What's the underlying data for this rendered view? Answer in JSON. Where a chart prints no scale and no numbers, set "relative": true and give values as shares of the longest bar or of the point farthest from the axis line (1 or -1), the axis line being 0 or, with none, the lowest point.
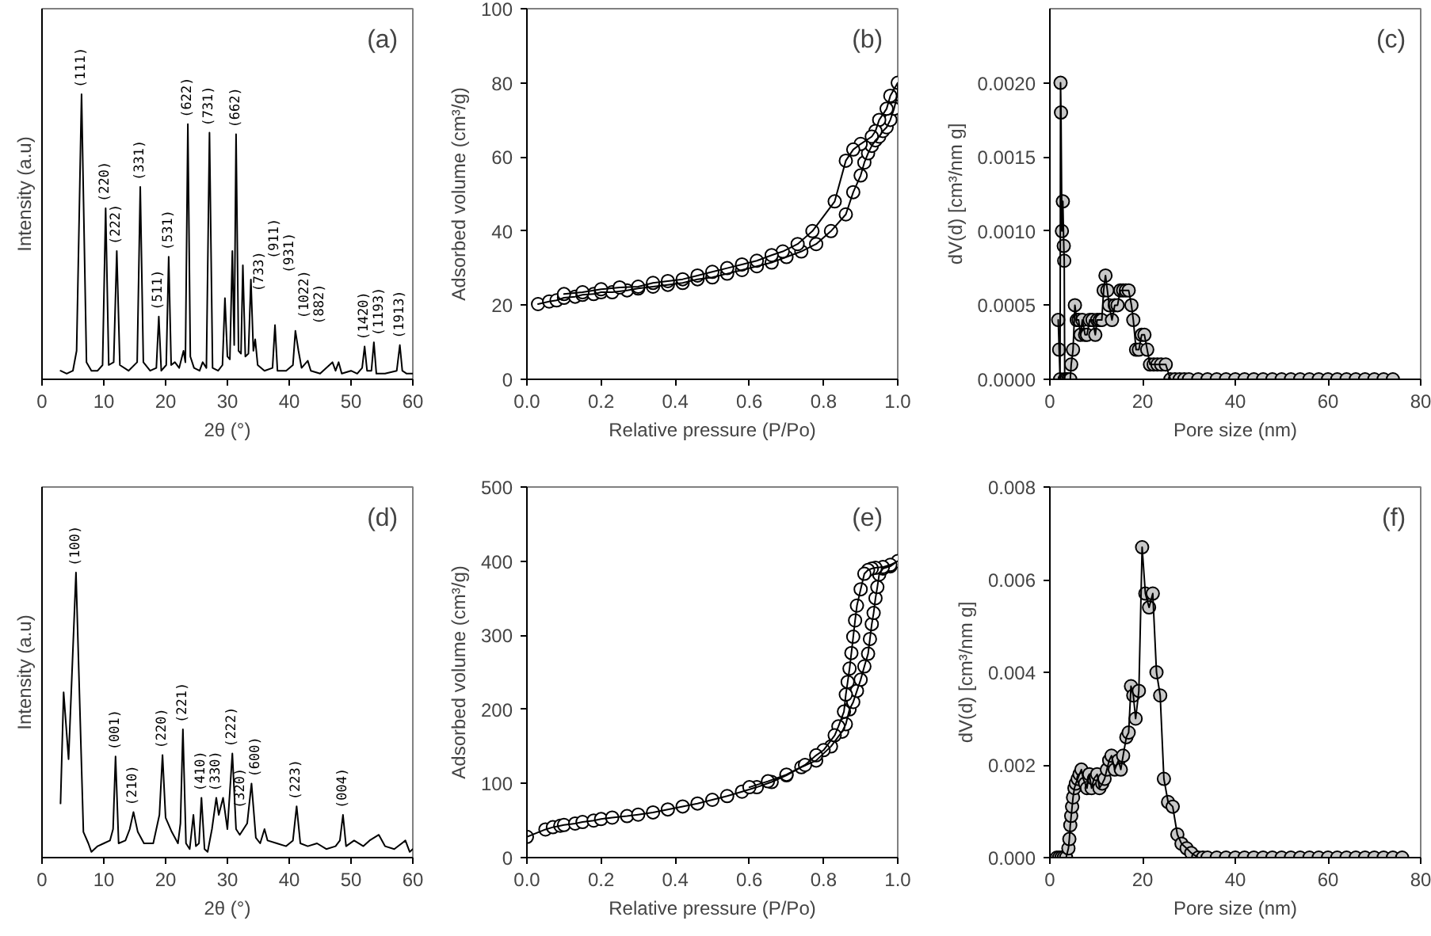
{
  "chart_data": [
    {
      "type": "line",
      "xlabel": "2θ (°)",
      "ylabel": "Intensity (a.u)",
      "relative": true,
      "tick_labels": "x",
      "xlim": [
        0,
        60
      ],
      "xticks": [
        0,
        10,
        20,
        30,
        40,
        50,
        60
      ],
      "x": [
        3,
        4,
        5,
        5.6,
        6.4,
        7.2,
        8,
        9,
        9.8,
        10.3,
        10.8,
        11.6,
        12.1,
        12.6,
        14,
        15.4,
        15.9,
        16.4,
        17.5,
        18.5,
        18.9,
        19.3,
        20.1,
        20.5,
        20.9,
        21.5,
        22.2,
        22.9,
        23.2,
        23.6,
        24.0,
        24.6,
        25.5,
        26,
        26.6,
        27.1,
        27.6,
        28.5,
        29.2,
        29.6,
        30.0,
        30.4,
        30.8,
        31.1,
        31.4,
        31.8,
        32.2,
        32.5,
        32.9,
        33.4,
        33.8,
        34.2,
        34.5,
        34.9,
        36,
        37.3,
        37.7,
        38.1,
        39.5,
        40.6,
        41.0,
        41.5,
        42,
        43,
        43.5,
        45,
        47,
        47.5,
        48,
        48.5,
        50,
        51,
        51.8,
        52.2,
        52.6,
        53.3,
        53.7,
        54.1,
        55.5,
        57.4,
        57.9,
        58.3,
        59,
        60
      ],
      "series": [
        {
          "color": "#000000",
          "values": [
            0.03,
            0.02,
            0.03,
            0.1,
            1.0,
            0.06,
            0.03,
            0.03,
            0.05,
            0.6,
            0.05,
            0.06,
            0.45,
            0.05,
            0.03,
            0.06,
            0.675,
            0.06,
            0.03,
            0.04,
            0.22,
            0.03,
            0.05,
            0.43,
            0.05,
            0.06,
            0.04,
            0.1,
            0.06,
            0.895,
            0.08,
            0.04,
            0.03,
            0.06,
            0.04,
            0.865,
            0.04,
            0.03,
            0.05,
            0.285,
            0.08,
            0.07,
            0.45,
            0.12,
            0.86,
            0.1,
            0.09,
            0.4,
            0.08,
            0.09,
            0.35,
            0.1,
            0.14,
            0.05,
            0.03,
            0.04,
            0.19,
            0.03,
            0.03,
            0.05,
            0.17,
            0.1,
            0.04,
            0.065,
            0.03,
            0.02,
            0.06,
            0.03,
            0.06,
            0.02,
            0.03,
            0.02,
            0.04,
            0.115,
            0.03,
            0.03,
            0.13,
            0.02,
            0.02,
            0.03,
            0.12,
            0.03,
            0.02,
            0.02
          ]
        }
      ],
      "annotations": [
        "(a)",
        {
          "text": "(111)",
          "x": 6.4,
          "y": 1.0
        },
        {
          "text": "(220)",
          "x": 10.3,
          "y": 0.6
        },
        {
          "text": "(222)",
          "x": 12.1,
          "y": 0.45
        },
        {
          "text": "(331)",
          "x": 15.9,
          "y": 0.675
        },
        {
          "text": "(511)",
          "x": 18.9,
          "y": 0.22
        },
        {
          "text": "(531)",
          "x": 20.5,
          "y": 0.43
        },
        {
          "text": "(622)",
          "x": 23.6,
          "y": 0.895
        },
        {
          "text": "(731)",
          "x": 27.1,
          "y": 0.865
        },
        {
          "text": "(733)",
          "x": 29.6,
          "y": 0.285
        },
        {
          "text": "(662)",
          "x": 31.4,
          "y": 0.86
        },
        {
          "text": "(911)",
          "x": 32.5,
          "y": 0.4
        },
        {
          "text": "(931)",
          "x": 33.8,
          "y": 0.35
        },
        {
          "text": "(1022)",
          "x": 37.7,
          "y": 0.19
        },
        {
          "text": "(882)",
          "x": 41.0,
          "y": 0.17
        },
        {
          "text": "(1420)",
          "x": 52.2,
          "y": 0.115
        },
        {
          "text": "(1193)",
          "x": 53.7,
          "y": 0.13
        },
        {
          "text": "(1913)",
          "x": 57.9,
          "y": 0.12
        }
      ]
    },
    {
      "type": "line",
      "xlabel": "Relative pressure (P/Po)",
      "ylabel": "Adsorbed volume (cm³/g)",
      "marker": "circle",
      "xlim": [
        0,
        1
      ],
      "xticks": [
        {
          "value": 0,
          "label": "0.0"
        },
        {
          "value": 0.2,
          "label": "0.2"
        },
        {
          "value": 0.4,
          "label": "0.4"
        },
        {
          "value": 0.6,
          "label": "0.6"
        },
        {
          "value": 0.8,
          "label": "0.8"
        },
        {
          "value": 1,
          "label": "1.0"
        }
      ],
      "ylim": [
        0,
        100
      ],
      "yticks": [
        0,
        20,
        40,
        60,
        80,
        100
      ],
      "series": [
        {
          "color": "#ffffff",
          "x": [
            0.03,
            0.06,
            0.08,
            0.1,
            0.13,
            0.15,
            0.18,
            0.2,
            0.23,
            0.27,
            0.3,
            0.34,
            0.38,
            0.42,
            0.46,
            0.5,
            0.54,
            0.58,
            0.62,
            0.66,
            0.7,
            0.74,
            0.78,
            0.82,
            0.86,
            0.88,
            0.9,
            0.91,
            0.92,
            0.93,
            0.94,
            0.95,
            0.96,
            0.97,
            0.98,
            0.99,
            1.0,
            1.0,
            0.98,
            0.97,
            0.95,
            0.94,
            0.93,
            0.9,
            0.88,
            0.86,
            0.83,
            0.77,
            0.73,
            0.69,
            0.66,
            0.62,
            0.58,
            0.54,
            0.5,
            0.46,
            0.42,
            0.38,
            0.34,
            0.3,
            0.25,
            0.2,
            0.15,
            0.1
          ],
          "values": [
            20.3,
            21,
            21.3,
            22,
            22.3,
            22.8,
            23,
            23.5,
            23.5,
            24,
            24.5,
            25,
            25.5,
            26,
            27,
            27.5,
            28.5,
            29.5,
            30.5,
            31.5,
            33,
            34.5,
            36.5,
            40,
            44.5,
            50.5,
            55,
            58.5,
            61,
            63,
            64.5,
            65.5,
            67,
            68,
            70,
            73,
            77,
            80,
            76.5,
            73,
            70,
            67,
            65.5,
            63.5,
            62,
            59,
            48,
            40,
            36.5,
            34.5,
            33.5,
            32,
            31,
            30,
            29,
            28,
            27,
            26.5,
            26,
            25,
            24.8,
            24.3,
            23.5,
            23
          ]
        }
      ],
      "annotations": [
        "(b)"
      ]
    },
    {
      "type": "line",
      "xlabel": "Pore size (nm)",
      "ylabel": "dV(d) [cm³/nm g]",
      "marker": "circle",
      "xlim": [
        0,
        80
      ],
      "xticks": [
        0,
        20,
        40,
        60,
        80
      ],
      "ylim": [
        0,
        0.0025
      ],
      "yticks": [
        {
          "value": 0,
          "label": "0.0000"
        },
        {
          "value": 0.0005,
          "label": "0.0005"
        },
        {
          "value": 0.001,
          "label": "0.0010"
        },
        {
          "value": 0.0015,
          "label": "0.0015"
        },
        {
          "value": 0.002,
          "label": "0.0020"
        }
      ],
      "series": [
        {
          "color": "#c8c8c8",
          "x": [
            1.8,
            2.0,
            2.2,
            2.3,
            2.4,
            2.6,
            2.8,
            3.0,
            3.1,
            3.2,
            3.6,
            4.0,
            4.4,
            4.6,
            5.0,
            5.4,
            5.8,
            6.2,
            6.6,
            7.0,
            7.6,
            8.0,
            8.6,
            9.2,
            9.8,
            10.2,
            10.8,
            11.2,
            11.6,
            12.0,
            12.4,
            12.8,
            13.4,
            14.0,
            14.6,
            15.2,
            15.8,
            16.4,
            17.0,
            17.6,
            18.0,
            18.6,
            19.2,
            19.8,
            20.4,
            21.0,
            21.6,
            22.4,
            23.2,
            24.0,
            25,
            26,
            27,
            28,
            29,
            30,
            32,
            34,
            36,
            38,
            40,
            42,
            44,
            46,
            48,
            50,
            52,
            54,
            56,
            58,
            60,
            62,
            64,
            66,
            68,
            70,
            72,
            74
          ],
          "values": [
            0.0004,
            0.0002,
            0.0,
            0.002,
            0.0018,
            0.001,
            0.0012,
            0.0009,
            0.0008,
            0.0,
            0.0,
            0.0,
            0.0,
            0.0001,
            0.0002,
            0.0005,
            0.0004,
            0.0004,
            0.0003,
            0.0004,
            0.0003,
            0.0003,
            0.0004,
            0.0004,
            0.0003,
            0.0004,
            0.0004,
            0.0004,
            0.0006,
            0.0007,
            0.0006,
            0.0005,
            0.0004,
            0.0005,
            0.0005,
            0.0006,
            0.0006,
            0.0006,
            0.0006,
            0.0005,
            0.0004,
            0.0002,
            0.0002,
            0.0003,
            0.0003,
            0.0002,
            0.0001,
            0.0001,
            0.0001,
            0.0001,
            0.0001,
            0.0,
            0.0,
            0.0,
            0.0,
            0.0,
            0.0,
            0.0,
            0.0,
            0.0,
            0.0,
            0.0,
            0.0,
            0.0,
            0.0,
            0.0,
            0.0,
            0.0,
            0.0,
            0.0,
            0.0,
            0.0,
            0.0,
            0.0,
            0.0,
            0.0,
            0.0,
            0.0
          ]
        }
      ],
      "annotations": [
        "(c)"
      ]
    },
    {
      "type": "line",
      "xlabel": "2θ (°)",
      "ylabel": "Intensity (a.u)",
      "relative": true,
      "tick_labels": "x",
      "xlim": [
        0,
        60
      ],
      "xticks": [
        0,
        10,
        20,
        30,
        40,
        50,
        60
      ],
      "x": [
        3,
        3.5,
        4.3,
        5.5,
        6.7,
        7.5,
        8,
        9,
        10,
        11,
        11.5,
        11.9,
        12.4,
        13.5,
        14.2,
        14.8,
        15.5,
        16.5,
        18,
        19,
        19.5,
        20,
        21,
        22,
        22.4,
        22.8,
        23.3,
        23.9,
        24.5,
        24.9,
        25.4,
        25.8,
        26.3,
        26.8,
        27.5,
        28.2,
        28.6,
        29.3,
        30,
        30.8,
        31.4,
        32,
        33.2,
        33.9,
        34.6,
        35.3,
        36,
        36.5,
        38,
        39.5,
        40.6,
        41.2,
        41.8,
        43,
        44.5,
        46,
        47.5,
        48.2,
        48.7,
        49.2,
        50.5,
        52,
        53,
        54.5,
        55.5,
        57,
        58.8,
        59.5,
        60
      ],
      "series": [
        {
          "color": "#000000",
          "values": [
            0.19,
            0.58,
            0.345,
            1.0,
            0.09,
            0.05,
            0.02,
            0.04,
            0.05,
            0.06,
            0.1,
            0.355,
            0.05,
            0.06,
            0.1,
            0.16,
            0.09,
            0.05,
            0.05,
            0.15,
            0.36,
            0.14,
            0.09,
            0.05,
            0.12,
            0.45,
            0.05,
            0.03,
            0.15,
            0.04,
            0.05,
            0.21,
            0.03,
            0.02,
            0.1,
            0.21,
            0.15,
            0.21,
            0.1,
            0.365,
            0.1,
            0.08,
            0.12,
            0.26,
            0.07,
            0.05,
            0.1,
            0.06,
            0.05,
            0.04,
            0.06,
            0.18,
            0.05,
            0.04,
            0.05,
            0.03,
            0.04,
            0.06,
            0.15,
            0.04,
            0.06,
            0.04,
            0.06,
            0.08,
            0.04,
            0.03,
            0.06,
            0.02,
            0.03
          ]
        }
      ],
      "annotations": [
        "(d)",
        {
          "text": "(100)",
          "x": 5.5,
          "y": 1.0
        },
        {
          "text": "(001)",
          "x": 11.9,
          "y": 0.355
        },
        {
          "text": "(210)",
          "x": 14.8,
          "y": 0.16
        },
        {
          "text": "(220)",
          "x": 19.5,
          "y": 0.36
        },
        {
          "text": "(221)",
          "x": 22.8,
          "y": 0.45
        },
        {
          "text": "(320)",
          "x": 24.5,
          "y": 0.15
        },
        {
          "text": "(410)",
          "x": 25.8,
          "y": 0.21
        },
        {
          "text": "(330)",
          "x": 28.2,
          "y": 0.21
        },
        {
          "text": "(222)",
          "x": 30.8,
          "y": 0.365
        },
        {
          "text": "(600)",
          "x": 33.9,
          "y": 0.26
        },
        {
          "text": "(223)",
          "x": 41.2,
          "y": 0.18
        },
        {
          "text": "(004)",
          "x": 48.7,
          "y": 0.15
        }
      ]
    },
    {
      "type": "line",
      "xlabel": "Relative pressure (P/Po)",
      "ylabel": "Adsorbed volume (cm³/g)",
      "marker": "circle",
      "xlim": [
        0,
        1
      ],
      "xticks": [
        {
          "value": 0,
          "label": "0.0"
        },
        {
          "value": 0.2,
          "label": "0.2"
        },
        {
          "value": 0.4,
          "label": "0.4"
        },
        {
          "value": 0.6,
          "label": "0.6"
        },
        {
          "value": 0.8,
          "label": "0.8"
        },
        {
          "value": 1,
          "label": "1.0"
        }
      ],
      "ylim": [
        0,
        500
      ],
      "yticks": [
        0,
        100,
        200,
        300,
        400,
        500
      ],
      "series": [
        {
          "color": "#ffffff",
          "x": [
            0.0,
            0.05,
            0.07,
            0.09,
            0.1,
            0.13,
            0.15,
            0.18,
            0.2,
            0.23,
            0.27,
            0.3,
            0.34,
            0.38,
            0.42,
            0.46,
            0.5,
            0.54,
            0.58,
            0.62,
            0.66,
            0.7,
            0.74,
            0.78,
            0.82,
            0.85,
            0.86,
            0.87,
            0.88,
            0.89,
            0.9,
            0.91,
            0.92,
            0.925,
            0.93,
            0.935,
            0.94,
            0.945,
            0.95,
            0.96,
            0.98,
            1.0,
            0.98,
            0.96,
            0.94,
            0.93,
            0.92,
            0.91,
            0.9,
            0.89,
            0.885,
            0.88,
            0.875,
            0.87,
            0.865,
            0.86,
            0.855,
            0.84,
            0.83,
            0.8,
            0.78,
            0.75,
            0.7,
            0.65,
            0.6
          ],
          "values": [
            28,
            38,
            41,
            43,
            44,
            46,
            48,
            50,
            52,
            54,
            56,
            58,
            61,
            65,
            69,
            73,
            78,
            83,
            89,
            95,
            102,
            111,
            122,
            131,
            150,
            170,
            180,
            200,
            210,
            225,
            240,
            258,
            275,
            295,
            315,
            330,
            350,
            365,
            382,
            390,
            393,
            400,
            395,
            392,
            391,
            390,
            388,
            383,
            362,
            340,
            320,
            298,
            276,
            255,
            237,
            220,
            197,
            177,
            165,
            145,
            138,
            125,
            112,
            103,
            95
          ]
        }
      ],
      "annotations": [
        "(e)"
      ]
    },
    {
      "type": "line",
      "xlabel": "Pore size (nm)",
      "ylabel": "dV(d) [cm³/nm g]",
      "marker": "circle",
      "xlim": [
        0,
        80
      ],
      "xticks": [
        0,
        20,
        40,
        60,
        80
      ],
      "ylim": [
        0,
        0.008
      ],
      "yticks": [
        {
          "value": 0,
          "label": "0.000"
        },
        {
          "value": 0.002,
          "label": "0.002"
        },
        {
          "value": 0.004,
          "label": "0.004"
        },
        {
          "value": 0.006,
          "label": "0.006"
        },
        {
          "value": 0.008,
          "label": "0.008"
        }
      ],
      "series": [
        {
          "color": "#c8c8c8",
          "x": [
            1.5,
            2,
            2.5,
            3,
            3.5,
            4,
            4.2,
            4.4,
            4.6,
            4.8,
            5.0,
            5.3,
            5.6,
            6.0,
            6.4,
            6.8,
            7.2,
            7.6,
            8.0,
            8.5,
            9.0,
            9.5,
            10.2,
            10.7,
            11.3,
            11.8,
            12.3,
            12.8,
            13.3,
            14.0,
            14.8,
            15.3,
            15.8,
            16.5,
            17.0,
            17.5,
            18.0,
            18.5,
            19.2,
            19.9,
            20.6,
            21.4,
            22.2,
            23.0,
            23.8,
            24.6,
            25.5,
            26.5,
            27.5,
            28.4,
            29.5,
            30.5,
            32,
            33,
            34,
            36,
            38,
            40,
            42,
            44,
            46,
            48,
            50,
            52,
            54,
            56,
            58,
            60,
            62,
            64,
            66,
            68,
            70,
            72,
            74,
            76
          ],
          "values": [
            0,
            0,
            0,
            0,
            0,
            0.0002,
            0.0004,
            0.0007,
            0.0009,
            0.0011,
            0.0013,
            0.0015,
            0.0016,
            0.0017,
            0.0018,
            0.0019,
            0.0017,
            0.0016,
            0.0015,
            0.0018,
            0.0015,
            0.0017,
            0.0018,
            0.0015,
            0.0016,
            0.0017,
            0.0019,
            0.0021,
            0.0022,
            0.0019,
            0.0021,
            0.0019,
            0.0022,
            0.0026,
            0.0027,
            0.0037,
            0.0035,
            0.003,
            0.0036,
            0.0067,
            0.0057,
            0.0054,
            0.0057,
            0.004,
            0.0035,
            0.0017,
            0.0012,
            0.0011,
            0.0005,
            0.0003,
            0.0002,
            0.0001,
            0,
            0,
            0,
            0,
            0,
            0,
            0,
            0,
            0,
            0,
            0,
            0,
            0,
            0,
            0,
            0,
            0,
            0,
            0,
            0,
            0,
            0,
            0,
            0
          ]
        }
      ],
      "annotations": [
        "(f)"
      ]
    }
  ]
}
